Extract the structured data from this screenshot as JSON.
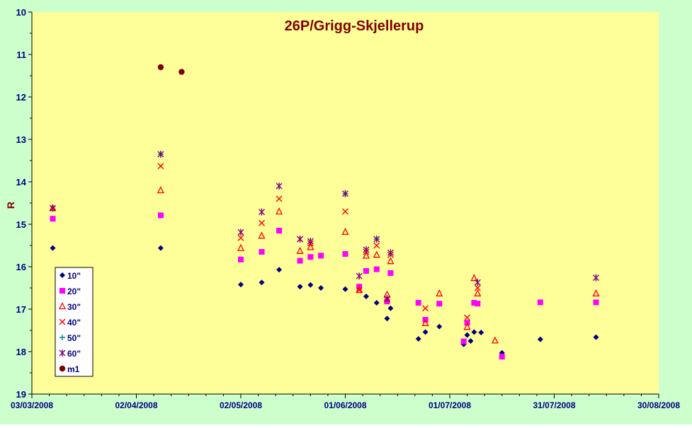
{
  "chart_data": {
    "type": "scatter",
    "title": "26P/Grigg-Skjellerup",
    "ylabel": "R",
    "xlabel": "",
    "y_inverted": true,
    "ylim": [
      10,
      19
    ],
    "yticks": [
      "10",
      "11",
      "12",
      "13",
      "14",
      "15",
      "16",
      "17",
      "18",
      "19"
    ],
    "xlim": [
      "2008-03-03",
      "2008-08-30"
    ],
    "xticks": [
      "03/03/2008",
      "02/04/2008",
      "02/05/2008",
      "01/06/2008",
      "01/07/2008",
      "31/07/2008",
      "30/08/2008"
    ],
    "grid": false,
    "legend_position": "bottom-left",
    "colors": {
      "background": "#ccffcc",
      "plot_area": "#ffff99",
      "title": "#800000",
      "axis_text": "#000080",
      "ylabel": "#800000"
    },
    "series": [
      {
        "name": "10\"",
        "marker": "diamond",
        "color": "#000080",
        "points": [
          [
            "2008-03-09",
            15.56
          ],
          [
            "2008-04-09",
            15.56
          ],
          [
            "2008-05-02",
            16.42
          ],
          [
            "2008-05-08",
            16.37
          ],
          [
            "2008-05-13",
            16.07
          ],
          [
            "2008-05-19",
            16.47
          ],
          [
            "2008-05-22",
            16.43
          ],
          [
            "2008-05-25",
            16.5
          ],
          [
            "2008-06-01",
            16.53
          ],
          [
            "2008-06-07",
            16.7
          ],
          [
            "2008-06-10",
            16.85
          ],
          [
            "2008-06-13",
            17.22
          ],
          [
            "2008-06-14",
            16.98
          ],
          [
            "2008-06-22",
            17.7
          ],
          [
            "2008-06-24",
            17.54
          ],
          [
            "2008-06-28",
            17.41
          ],
          [
            "2008-07-05",
            17.83
          ],
          [
            "2008-07-06",
            17.61
          ],
          [
            "2008-07-07",
            17.75
          ],
          [
            "2008-07-08",
            17.54
          ],
          [
            "2008-07-10",
            17.55
          ],
          [
            "2008-07-16",
            18.03
          ],
          [
            "2008-07-27",
            17.71
          ],
          [
            "2008-08-12",
            17.66
          ]
        ]
      },
      {
        "name": "20\"",
        "marker": "square",
        "color": "#ff00ff",
        "points": [
          [
            "2008-03-09",
            14.87
          ],
          [
            "2008-04-09",
            14.79
          ],
          [
            "2008-05-02",
            15.83
          ],
          [
            "2008-05-08",
            15.65
          ],
          [
            "2008-05-13",
            15.15
          ],
          [
            "2008-05-19",
            15.86
          ],
          [
            "2008-05-22",
            15.77
          ],
          [
            "2008-05-25",
            15.74
          ],
          [
            "2008-06-01",
            15.7
          ],
          [
            "2008-06-05",
            16.47
          ],
          [
            "2008-06-07",
            16.1
          ],
          [
            "2008-06-10",
            16.06
          ],
          [
            "2008-06-13",
            16.82
          ],
          [
            "2008-06-14",
            16.15
          ],
          [
            "2008-06-22",
            16.85
          ],
          [
            "2008-06-24",
            17.25
          ],
          [
            "2008-06-28",
            16.87
          ],
          [
            "2008-07-05",
            17.76
          ],
          [
            "2008-07-06",
            17.32
          ],
          [
            "2008-07-08",
            16.85
          ],
          [
            "2008-07-09",
            16.87
          ],
          [
            "2008-07-16",
            18.12
          ],
          [
            "2008-07-27",
            16.84
          ],
          [
            "2008-08-12",
            16.84
          ]
        ]
      },
      {
        "name": "30\"",
        "marker": "triangle",
        "color": "#ff0000",
        "points": [
          [
            "2008-03-09",
            14.62
          ],
          [
            "2008-04-09",
            14.2
          ],
          [
            "2008-05-02",
            15.56
          ],
          [
            "2008-05-08",
            15.27
          ],
          [
            "2008-05-13",
            14.7
          ],
          [
            "2008-05-19",
            15.63
          ],
          [
            "2008-05-22",
            15.54
          ],
          [
            "2008-06-01",
            15.18
          ],
          [
            "2008-06-05",
            16.55
          ],
          [
            "2008-06-07",
            15.74
          ],
          [
            "2008-06-10",
            15.72
          ],
          [
            "2008-06-13",
            16.66
          ],
          [
            "2008-06-14",
            15.87
          ],
          [
            "2008-06-24",
            17.33
          ],
          [
            "2008-06-28",
            16.63
          ],
          [
            "2008-07-06",
            17.42
          ],
          [
            "2008-07-08",
            16.27
          ],
          [
            "2008-07-09",
            16.63
          ],
          [
            "2008-07-14",
            17.74
          ],
          [
            "2008-08-12",
            16.63
          ]
        ]
      },
      {
        "name": "40\"",
        "marker": "x",
        "color": "#ff0000",
        "points": [
          [
            "2008-03-09",
            14.62
          ],
          [
            "2008-04-09",
            13.63
          ],
          [
            "2008-05-02",
            15.32
          ],
          [
            "2008-05-08",
            14.97
          ],
          [
            "2008-05-13",
            14.4
          ],
          [
            "2008-05-19",
            15.35
          ],
          [
            "2008-05-22",
            15.45
          ],
          [
            "2008-06-01",
            14.7
          ],
          [
            "2008-06-05",
            16.55
          ],
          [
            "2008-06-07",
            15.65
          ],
          [
            "2008-06-10",
            15.5
          ],
          [
            "2008-06-13",
            16.77
          ],
          [
            "2008-06-14",
            15.72
          ],
          [
            "2008-06-24",
            16.98
          ],
          [
            "2008-07-06",
            17.2
          ],
          [
            "2008-07-09",
            16.5
          ]
        ]
      },
      {
        "name": "50\"",
        "marker": "plus",
        "color": "#008080",
        "points": [
          [
            "2008-04-09",
            13.35
          ],
          [
            "2008-06-01",
            14.28
          ],
          [
            "2008-06-10",
            15.35
          ]
        ]
      },
      {
        "name": "60\"",
        "marker": "star",
        "color": "#800080",
        "points": [
          [
            "2008-03-09",
            14.62
          ],
          [
            "2008-04-09",
            13.35
          ],
          [
            "2008-05-02",
            15.19
          ],
          [
            "2008-05-08",
            14.71
          ],
          [
            "2008-05-13",
            14.1
          ],
          [
            "2008-05-19",
            15.35
          ],
          [
            "2008-05-22",
            15.4
          ],
          [
            "2008-06-01",
            14.28
          ],
          [
            "2008-06-05",
            16.22
          ],
          [
            "2008-06-07",
            15.6
          ],
          [
            "2008-06-10",
            15.35
          ],
          [
            "2008-06-13",
            16.75
          ],
          [
            "2008-06-14",
            15.67
          ],
          [
            "2008-07-09",
            16.37
          ],
          [
            "2008-08-12",
            16.26
          ]
        ]
      },
      {
        "name": "m1",
        "marker": "circle",
        "color": "#800000",
        "points": [
          [
            "2008-04-09",
            11.3
          ],
          [
            "2008-04-15",
            11.41
          ]
        ]
      }
    ]
  }
}
